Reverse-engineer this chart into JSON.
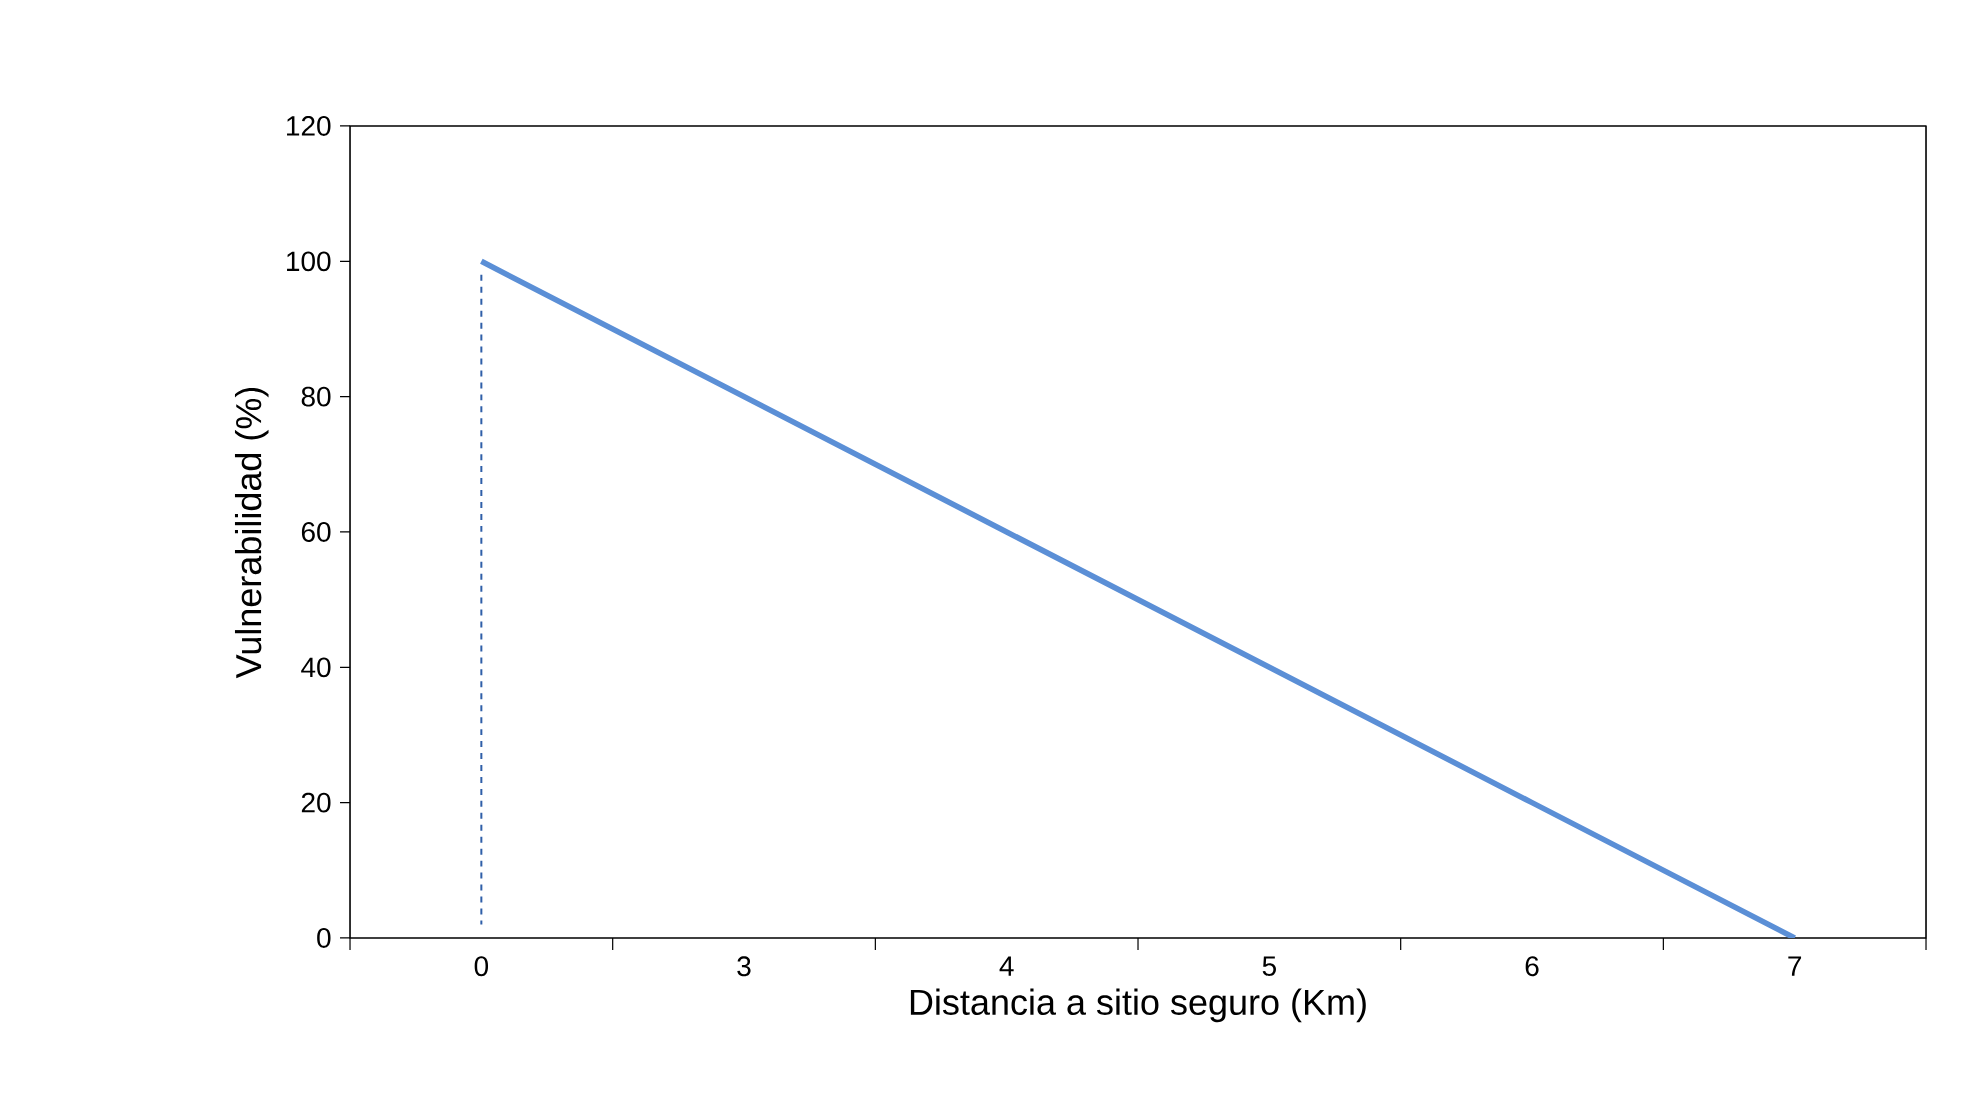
{
  "chart_data": {
    "type": "line",
    "xlabel": "Distancia a sitio seguro (Km)",
    "ylabel": "Vulnerabilidad  (%)",
    "categories": [
      "0",
      "3",
      "4",
      "5",
      "6",
      "7"
    ],
    "series": [
      {
        "color": "#5b8fd6",
        "values": [
          100,
          80,
          60,
          40,
          20,
          0
        ],
        "line_style": "solid"
      },
      {
        "color": "#2f5fa8",
        "x": [
          "0",
          "0"
        ],
        "values": [
          98,
          2
        ],
        "line_style": "dashed"
      }
    ],
    "ylim": [
      0,
      120
    ],
    "yticks": [
      0,
      20,
      40,
      60,
      80,
      100,
      120
    ],
    "grid": false,
    "marker": "none"
  }
}
